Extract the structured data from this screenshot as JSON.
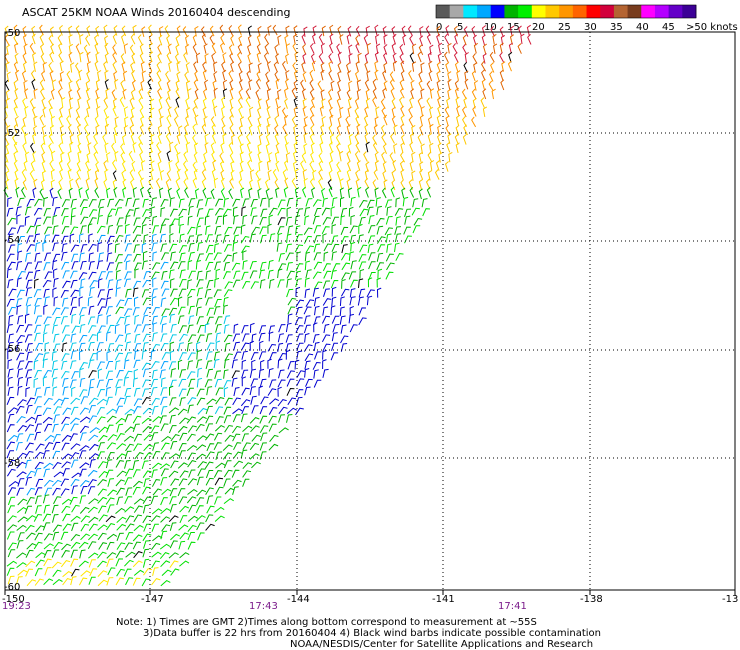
{
  "title": "ASCAT 25KM NOAA Winds 20160404 descending",
  "legend": {
    "labels": [
      "0",
      "5",
      "10",
      "15",
      "20",
      "25",
      "30",
      "35",
      "40",
      "45",
      ">50 knots"
    ],
    "colors": [
      "#5a5a5a",
      "#a8a8a8",
      "#00e8ff",
      "#00a8ff",
      "#0000ff",
      "#00b400",
      "#00f000",
      "#ffff00",
      "#ffc800",
      "#ff9600",
      "#ff6400",
      "#ff0000",
      "#d2003c",
      "#b46432",
      "#783c1e",
      "#ff00ff",
      "#b400ff",
      "#6400c8",
      "#3c0096"
    ]
  },
  "lat_labels": [
    "-50",
    "-52",
    "-54",
    "-56",
    "-58",
    "-60"
  ],
  "lon_labels": [
    "-150",
    "-147",
    "-144",
    "-141",
    "-138",
    "-13"
  ],
  "times": [
    "19:23",
    "17:43",
    "17:41"
  ],
  "notes": [
    "Note: 1) Times are GMT 2)Times along bottom correspond to measurement at ~55S",
    "3)Data buffer is 22 hrs from 20160404 4) Black wind barbs indicate possible contamination",
    "NOAA/NESDIS/Center for Satellite Applications and Research"
  ],
  "wind_speed_colors": {
    "blue_low": "#0000d0",
    "cyan": "#00c8e6",
    "light_blue": "#00a0ff",
    "green": "#00b400",
    "lime": "#00e000",
    "yellow": "#ffe600",
    "gold": "#ffc800",
    "orange": "#ff9600",
    "dark_orange": "#e06400",
    "red": "#d21e3c",
    "contaminated": "#000000"
  }
}
